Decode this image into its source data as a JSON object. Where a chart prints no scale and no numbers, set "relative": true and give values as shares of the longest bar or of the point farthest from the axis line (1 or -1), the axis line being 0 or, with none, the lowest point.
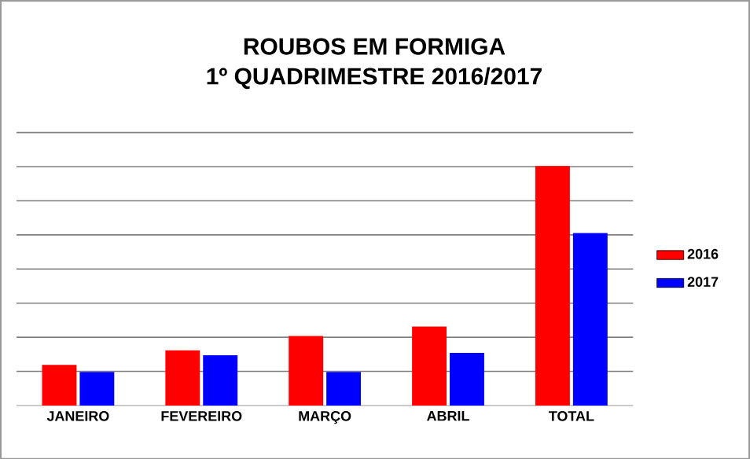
{
  "chart_data": {
    "type": "bar",
    "title": "ROUBOS EM FORMIGA\n1º QUADRIMESTRE 2016/2017",
    "relative": true,
    "categories": [
      "JANEIRO",
      "FEVEREIRO",
      "MARÇO",
      "ABRIL",
      "TOTAL"
    ],
    "series": [
      {
        "name": "2016",
        "color": "#ff0000",
        "values": [
          0.17,
          0.23,
          0.29,
          0.33,
          1
        ]
      },
      {
        "name": "2017",
        "color": "#0000ff",
        "values": [
          0.14,
          0.21,
          0.14,
          0.22,
          0.72
        ]
      }
    ],
    "grid": "y",
    "legend": "right"
  }
}
